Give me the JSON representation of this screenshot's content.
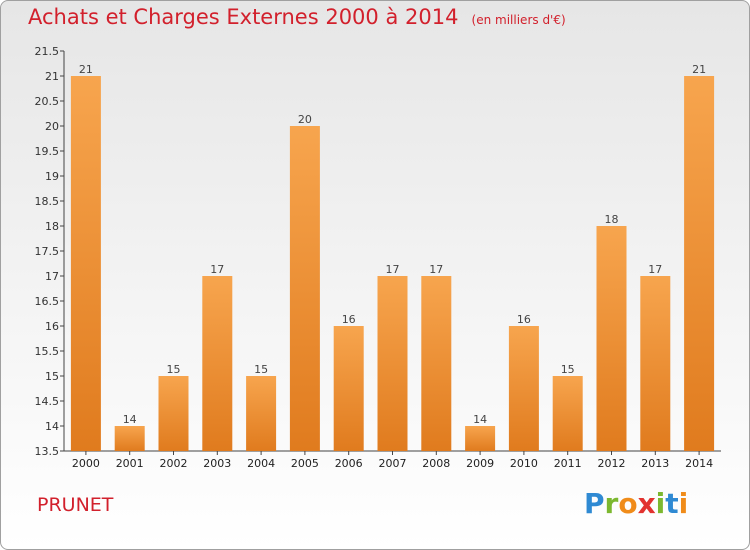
{
  "header": {
    "title": "Achats et Charges Externes 2000 à 2014",
    "unit": "(en milliers d'€)"
  },
  "footer": {
    "commune": "PRUNET",
    "logo": "Proxiti"
  },
  "colors": {
    "title": "#d2202c",
    "bar_light": "#f7a54e",
    "bar_dark": "#e07b1e",
    "logo_letters": [
      "#2f8ad3",
      "#7cb82f",
      "#f08c1a",
      "#e2322f",
      "#7cb82f",
      "#2f8ad3",
      "#f08c1a"
    ]
  },
  "chart_data": {
    "type": "bar",
    "categories": [
      "2000",
      "2001",
      "2002",
      "2003",
      "2004",
      "2005",
      "2006",
      "2007",
      "2008",
      "2009",
      "2010",
      "2011",
      "2012",
      "2013",
      "2014"
    ],
    "values": [
      21,
      14,
      15,
      17,
      15,
      20,
      16,
      17,
      17,
      14,
      16,
      15,
      18,
      17,
      21
    ],
    "title": "Achats et Charges Externes 2000 à 2014",
    "ylim": [
      13.5,
      21.5
    ],
    "yticks": [
      "13.5",
      "14",
      "14.5",
      "15",
      "15.5",
      "16",
      "16.5",
      "17",
      "17.5",
      "18",
      "18.5",
      "19",
      "19.5",
      "20",
      "20.5",
      "21",
      "21.5"
    ],
    "grid": false
  }
}
